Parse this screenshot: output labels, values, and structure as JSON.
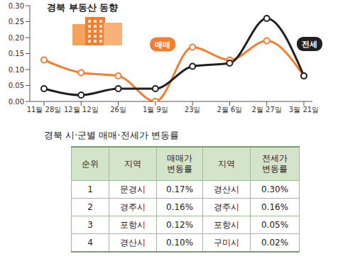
{
  "chart_data": {
    "type": "line",
    "title": "경북 부동산 동향",
    "categories": [
      "11월 28일",
      "12월 12일",
      "26일",
      "1월 9일",
      "23일",
      "2월 6일",
      "2월 27일",
      "3월 21일"
    ],
    "series": [
      {
        "name": "매매",
        "color": "#f47d30",
        "marker": "circle",
        "values": [
          0.13,
          0.09,
          0.08,
          0.0,
          0.17,
          0.13,
          0.19,
          0.08
        ]
      },
      {
        "name": "전세",
        "color": "#231f20",
        "marker": "circle",
        "values": [
          0.04,
          0.02,
          0.04,
          0.04,
          0.11,
          0.12,
          0.26,
          0.08
        ]
      }
    ],
    "ylim": [
      0,
      0.3
    ],
    "yticks": [
      {
        "value": 0,
        "label": "0.00"
      },
      0.05,
      {
        "value": 0.1,
        "label": "0.10"
      },
      0.15,
      {
        "value": 0.2,
        "label": "0.20"
      },
      0.25,
      {
        "value": 0.3,
        "label": "0.30"
      }
    ],
    "grid": false
  },
  "table": {
    "title": "경북 시·군별 매매·전세가 변동률",
    "header": [
      "순위",
      "지역",
      "매매가 변동률",
      "지역",
      "전세가 변동률"
    ],
    "rows": [
      [
        "1",
        "문경시",
        "0.17%",
        "경산시",
        "0.30%"
      ],
      [
        "2",
        "경주시",
        "0.16%",
        "경주시",
        "0.16%"
      ],
      [
        "3",
        "포항시",
        "0.12%",
        "포항시",
        "0.05%"
      ],
      [
        "4",
        "경산시",
        "0.10%",
        "구미시",
        "0.02%"
      ]
    ]
  }
}
